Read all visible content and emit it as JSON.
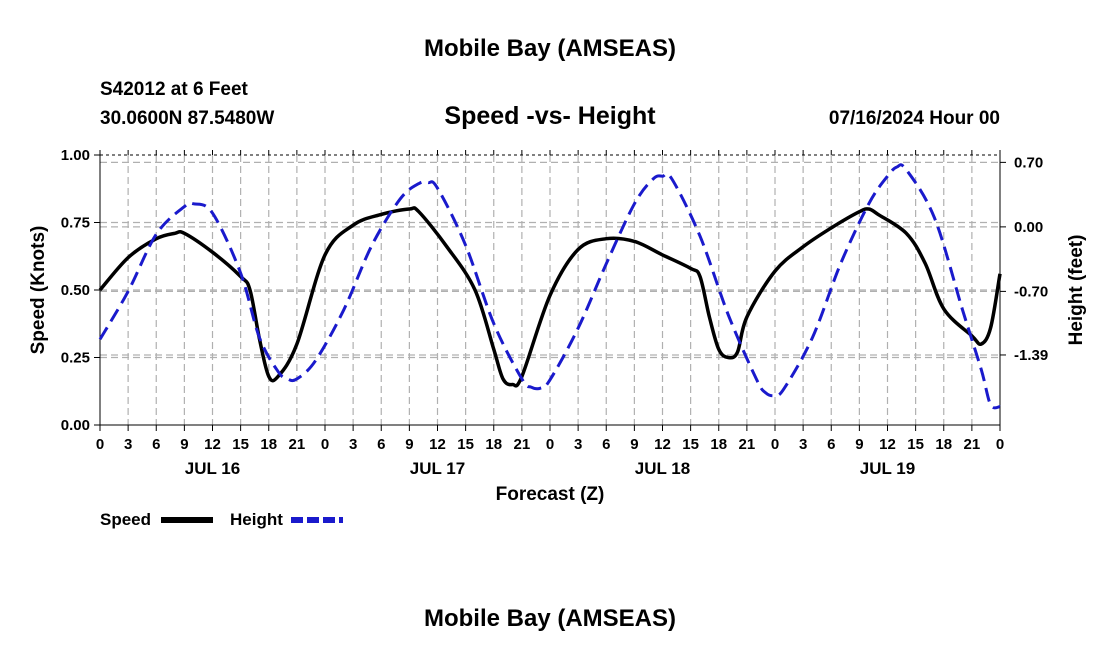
{
  "header": {
    "title": "Mobile Bay (AMSEAS)",
    "station": "S42012 at 6 Feet",
    "coords": "30.0600N  87.5480W",
    "subtitle": "Speed -vs- Height",
    "date": "07/16/2024 Hour 00"
  },
  "footer": {
    "title": "Mobile Bay (AMSEAS)"
  },
  "chart_data": {
    "type": "line",
    "title": "Speed -vs- Height",
    "xlabel": "Forecast (Z)",
    "ylabel_left": "Speed (Knots)",
    "ylabel_right": "Height (feet)",
    "x_range_hours": [
      0,
      96
    ],
    "x_tick_step_hours": 3,
    "x_tick_labels": [
      "0",
      "3",
      "6",
      "9",
      "12",
      "15",
      "18",
      "21",
      "0",
      "3",
      "6",
      "9",
      "12",
      "15",
      "18",
      "21",
      "0",
      "3",
      "6",
      "9",
      "12",
      "15",
      "18",
      "21",
      "0",
      "3",
      "6",
      "9",
      "12",
      "15",
      "18",
      "21",
      "0"
    ],
    "day_labels": [
      {
        "label": "JUL 16",
        "hour": 12
      },
      {
        "label": "JUL 17",
        "hour": 36
      },
      {
        "label": "JUL 18",
        "hour": 60
      },
      {
        "label": "JUL 19",
        "hour": 84
      }
    ],
    "left_axis": {
      "min": 0,
      "max": 1.0,
      "ticks": [
        "0.00",
        "0.25",
        "0.50",
        "0.75",
        "1.00"
      ],
      "tick_values": [
        0,
        0.25,
        0.5,
        0.75,
        1.0
      ]
    },
    "right_axis": {
      "min": -2.15,
      "max": 0.78,
      "ticks": [
        "0.70",
        "0.00",
        "-0.70",
        "-1.39"
      ],
      "tick_values": [
        0.7,
        0.0,
        -0.7,
        -1.39
      ]
    },
    "grid": true,
    "series": [
      {
        "name": "Speed",
        "axis": "left",
        "color": "#000000",
        "dash": "solid",
        "points": [
          [
            0,
            0.5
          ],
          [
            3,
            0.62
          ],
          [
            6,
            0.69
          ],
          [
            8,
            0.71
          ],
          [
            9,
            0.71
          ],
          [
            12,
            0.64
          ],
          [
            15,
            0.55
          ],
          [
            16,
            0.5
          ],
          [
            17,
            0.32
          ],
          [
            18,
            0.18
          ],
          [
            19,
            0.18
          ],
          [
            21,
            0.3
          ],
          [
            24,
            0.63
          ],
          [
            27,
            0.74
          ],
          [
            30,
            0.78
          ],
          [
            33,
            0.8
          ],
          [
            34,
            0.79
          ],
          [
            37,
            0.66
          ],
          [
            40,
            0.5
          ],
          [
            42,
            0.28
          ],
          [
            43,
            0.17
          ],
          [
            44,
            0.15
          ],
          [
            45,
            0.18
          ],
          [
            48,
            0.48
          ],
          [
            51,
            0.65
          ],
          [
            54,
            0.69
          ],
          [
            57,
            0.68
          ],
          [
            60,
            0.63
          ],
          [
            63,
            0.58
          ],
          [
            64,
            0.55
          ],
          [
            65,
            0.4
          ],
          [
            66,
            0.28
          ],
          [
            67,
            0.25
          ],
          [
            68,
            0.27
          ],
          [
            69,
            0.4
          ],
          [
            72,
            0.57
          ],
          [
            75,
            0.66
          ],
          [
            78,
            0.73
          ],
          [
            81,
            0.79
          ],
          [
            82,
            0.8
          ],
          [
            83,
            0.78
          ],
          [
            86,
            0.71
          ],
          [
            88,
            0.6
          ],
          [
            90,
            0.43
          ],
          [
            93,
            0.33
          ],
          [
            94,
            0.3
          ],
          [
            95,
            0.36
          ],
          [
            96,
            0.56
          ]
        ]
      },
      {
        "name": "Height",
        "axis": "right",
        "color": "#1a1acc",
        "dash": "dashed",
        "points": [
          [
            0,
            -1.22
          ],
          [
            3,
            -0.7
          ],
          [
            6,
            -0.08
          ],
          [
            9,
            0.22
          ],
          [
            10,
            0.25
          ],
          [
            12,
            0.15
          ],
          [
            15,
            -0.5
          ],
          [
            17,
            -1.2
          ],
          [
            19,
            -1.57
          ],
          [
            20,
            -1.65
          ],
          [
            21,
            -1.65
          ],
          [
            23,
            -1.45
          ],
          [
            26,
            -0.9
          ],
          [
            29,
            -0.2
          ],
          [
            32,
            0.3
          ],
          [
            34,
            0.47
          ],
          [
            35,
            0.48
          ],
          [
            36,
            0.42
          ],
          [
            39,
            -0.2
          ],
          [
            42,
            -1.05
          ],
          [
            45,
            -1.65
          ],
          [
            46,
            -1.74
          ],
          [
            47,
            -1.75
          ],
          [
            48,
            -1.66
          ],
          [
            51,
            -1.1
          ],
          [
            54,
            -0.4
          ],
          [
            57,
            0.25
          ],
          [
            59,
            0.52
          ],
          [
            60,
            0.55
          ],
          [
            61,
            0.52
          ],
          [
            64,
            -0.1
          ],
          [
            67,
            -0.95
          ],
          [
            70,
            -1.65
          ],
          [
            71,
            -1.8
          ],
          [
            72,
            -1.83
          ],
          [
            73,
            -1.75
          ],
          [
            76,
            -1.2
          ],
          [
            79,
            -0.4
          ],
          [
            82,
            0.25
          ],
          [
            84,
            0.55
          ],
          [
            85,
            0.65
          ],
          [
            86,
            0.62
          ],
          [
            89,
            0.1
          ],
          [
            92,
            -0.9
          ],
          [
            94,
            -1.55
          ],
          [
            95,
            -1.93
          ],
          [
            96,
            -1.95
          ]
        ]
      }
    ],
    "legend": [
      {
        "label": "Speed",
        "color": "#000000",
        "dash": "solid"
      },
      {
        "label": "Height",
        "color": "#1a1acc",
        "dash": "dashed"
      }
    ]
  }
}
